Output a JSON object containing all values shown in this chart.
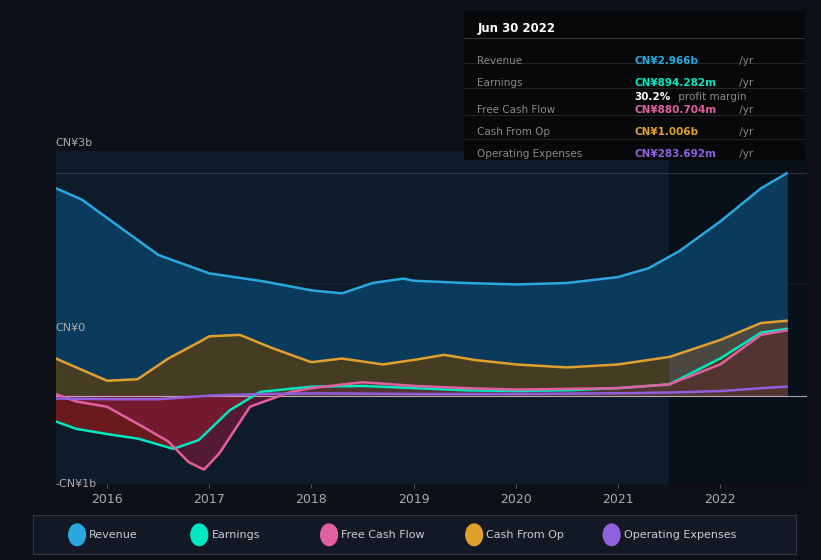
{
  "bg_color": "#0d1117",
  "chart_bg": "#0d1b2a",
  "y_label_top": "CN¥3b",
  "y_label_zero": "CN¥0",
  "y_label_bottom": "-CN¥1b",
  "x_ticks": [
    "2016",
    "2017",
    "2018",
    "2019",
    "2020",
    "2021",
    "2022"
  ],
  "legend": [
    {
      "label": "Revenue",
      "color": "#29a8e0"
    },
    {
      "label": "Earnings",
      "color": "#00e8c0"
    },
    {
      "label": "Free Cash Flow",
      "color": "#e060a0"
    },
    {
      "label": "Cash From Op",
      "color": "#e0a030"
    },
    {
      "label": "Operating Expenses",
      "color": "#9060e0"
    }
  ],
  "info_box": {
    "date": "Jun 30 2022",
    "rows": [
      {
        "label": "Revenue",
        "value": "CN¥2.966b",
        "color": "#29a8e0",
        "extra": null
      },
      {
        "label": "Earnings",
        "value": "CN¥894.282m",
        "color": "#00e8c0",
        "extra": "30.2% profit margin"
      },
      {
        "label": "Free Cash Flow",
        "value": "CN¥880.704m",
        "color": "#e060a0",
        "extra": null
      },
      {
        "label": "Cash From Op",
        "value": "CN¥1.006b",
        "color": "#e0a030",
        "extra": null
      },
      {
        "label": "Operating Expenses",
        "value": "CN¥283.692m",
        "color": "#9060e0",
        "extra": null
      }
    ]
  },
  "revenue_color": "#29a8e0",
  "earnings_color": "#00e8c0",
  "fcf_color": "#e060a0",
  "cashfromop_color": "#e0a030",
  "opex_color": "#9060e0",
  "ylim": [
    -1200000000.0,
    3300000000.0
  ],
  "xlim": [
    2015.5,
    2022.85
  ]
}
